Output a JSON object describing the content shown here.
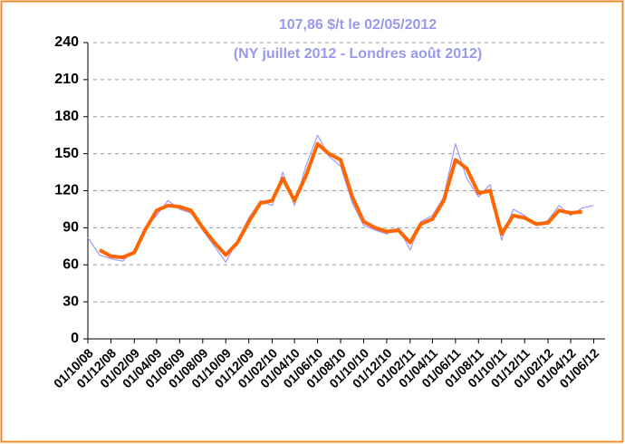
{
  "chart_data": {
    "type": "line",
    "title": "107,86 $/t le 02/05/2012",
    "subtitle": "(NY juillet 2012 - Londres août 2012)",
    "x": [
      "01/10/08",
      "01/11/08",
      "01/12/08",
      "01/01/09",
      "01/02/09",
      "01/03/09",
      "01/04/09",
      "01/05/09",
      "01/06/09",
      "01/07/09",
      "01/08/09",
      "01/09/09",
      "01/10/09",
      "01/11/09",
      "01/12/09",
      "01/01/10",
      "01/02/10",
      "01/03/10",
      "01/04/10",
      "01/05/10",
      "01/06/10",
      "01/07/10",
      "01/08/10",
      "01/09/10",
      "01/10/10",
      "01/11/10",
      "01/12/10",
      "01/01/11",
      "01/02/11",
      "01/03/11",
      "01/04/11",
      "01/05/11",
      "01/06/11",
      "01/07/11",
      "01/08/11",
      "01/09/11",
      "01/10/11",
      "01/11/11",
      "01/12/11",
      "01/01/12",
      "01/02/12",
      "01/03/12",
      "01/04/12",
      "01/05/12",
      "01/06/12"
    ],
    "series": [
      {
        "color": "#9999ff",
        "width": 1.2,
        "values": [
          82,
          68,
          65,
          63,
          72,
          90,
          100,
          112,
          105,
          102,
          88,
          75,
          62,
          80,
          98,
          112,
          108,
          135,
          108,
          140,
          165,
          148,
          140,
          110,
          92,
          88,
          85,
          90,
          72,
          95,
          100,
          115,
          158,
          130,
          115,
          125,
          80,
          105,
          100,
          92,
          96,
          108,
          100,
          106,
          108
        ]
      },
      {
        "color": "#ff6600",
        "width": 4,
        "values": [
          null,
          72,
          67,
          66,
          70,
          88,
          104,
          108,
          107,
          104,
          90,
          78,
          68,
          78,
          95,
          110,
          112,
          130,
          112,
          132,
          158,
          150,
          145,
          115,
          95,
          90,
          87,
          88,
          78,
          93,
          97,
          112,
          145,
          138,
          118,
          120,
          85,
          100,
          98,
          93,
          94,
          104,
          102,
          103,
          null
        ]
      }
    ],
    "xlim": [
      "01/10/08",
      "01/07/12"
    ],
    "xticks": [
      "01/10/08",
      "01/12/08",
      "01/02/09",
      "01/04/09",
      "01/06/09",
      "01/08/09",
      "01/10/09",
      "01/12/09",
      "01/02/10",
      "01/04/10",
      "01/06/10",
      "01/08/10",
      "01/10/10",
      "01/12/10",
      "01/02/11",
      "01/04/11",
      "01/06/11",
      "01/08/11",
      "01/10/11",
      "01/12/11",
      "01/02/12",
      "01/04/12",
      "01/06/12"
    ],
    "ylim": [
      0,
      240
    ],
    "yticks": [
      0,
      30,
      60,
      90,
      120,
      150,
      180,
      210,
      240
    ],
    "grid": true
  }
}
